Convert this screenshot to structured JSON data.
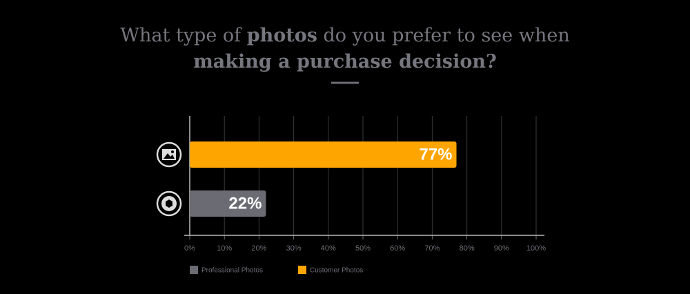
{
  "chart_data": {
    "type": "bar",
    "orientation": "horizontal",
    "title": [
      "What type of ",
      "photos",
      " do you prefer to see when",
      "making a purchase decision?"
    ],
    "categories": [
      null,
      null
    ],
    "series": [
      {
        "name": "Professional Photos",
        "color": "#6b6b73",
        "values": [
          null,
          22
        ],
        "value_labels": [
          null,
          "22%"
        ]
      },
      {
        "name": "Customer Photos",
        "color": "#ffa500",
        "values": [
          77,
          null
        ],
        "value_labels": [
          "77%",
          null
        ]
      }
    ],
    "xlim": [
      0,
      100
    ],
    "xticks": [
      {
        "value": 0,
        "label": "0%"
      },
      {
        "value": 10,
        "label": "10%"
      },
      {
        "value": 20,
        "label": "20%"
      },
      {
        "value": 30,
        "label": "30%"
      },
      {
        "value": 40,
        "label": "40%"
      },
      {
        "value": 50,
        "label": "50%"
      },
      {
        "value": 60,
        "label": "60%"
      },
      {
        "value": 70,
        "label": "70%"
      },
      {
        "value": 80,
        "label": "80%"
      },
      {
        "value": 90,
        "label": "90%"
      },
      {
        "value": 100,
        "label": "100%"
      }
    ],
    "grid": true,
    "legend": "bottom-left"
  }
}
